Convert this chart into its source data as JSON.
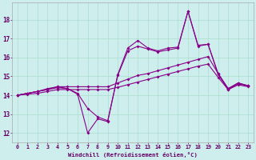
{
  "background_color": "#cdeeed",
  "grid_color": "#aaddcc",
  "line_color": "#880088",
  "xlabel": "Windchill (Refroidissement éolien,°C)",
  "x_ticks": [
    0,
    1,
    2,
    3,
    4,
    5,
    6,
    7,
    8,
    9,
    10,
    11,
    12,
    13,
    14,
    15,
    16,
    17,
    18,
    19,
    20,
    21,
    22,
    23
  ],
  "y_ticks": [
    12,
    13,
    14,
    15,
    16,
    17,
    18
  ],
  "ylim": [
    11.5,
    18.9
  ],
  "xlim": [
    -0.5,
    23.5
  ],
  "series": [
    [
      14.0,
      14.1,
      14.2,
      14.35,
      14.45,
      14.35,
      14.05,
      12.0,
      12.75,
      12.6,
      15.1,
      16.5,
      16.9,
      16.5,
      16.35,
      16.5,
      16.55,
      18.45,
      16.65,
      16.7,
      15.15,
      14.35,
      14.65,
      14.5
    ],
    [
      14.0,
      14.1,
      14.2,
      14.3,
      14.4,
      14.35,
      14.1,
      13.3,
      12.85,
      12.65,
      15.05,
      16.35,
      16.6,
      16.45,
      16.3,
      16.4,
      16.5,
      18.45,
      16.6,
      16.7,
      15.1,
      14.3,
      14.6,
      14.5
    ],
    [
      14.0,
      14.1,
      14.2,
      14.3,
      14.45,
      14.45,
      14.45,
      14.45,
      14.45,
      14.45,
      14.65,
      14.85,
      15.05,
      15.15,
      15.3,
      15.45,
      15.6,
      15.75,
      15.9,
      16.05,
      15.15,
      14.35,
      14.65,
      14.5
    ],
    [
      14.0,
      14.05,
      14.1,
      14.2,
      14.3,
      14.3,
      14.3,
      14.3,
      14.3,
      14.3,
      14.42,
      14.56,
      14.7,
      14.84,
      14.98,
      15.12,
      15.26,
      15.4,
      15.54,
      15.65,
      14.95,
      14.3,
      14.55,
      14.45
    ]
  ],
  "figsize": [
    3.2,
    2.0
  ],
  "dpi": 100
}
